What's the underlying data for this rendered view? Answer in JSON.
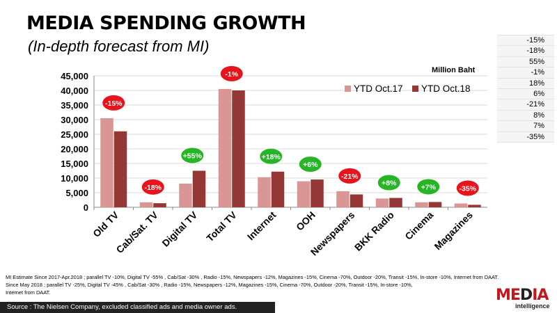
{
  "title": "MEDIA SPENDING GROWTH",
  "subtitle": "(In-depth forecast from MI)",
  "unit_label": "Million Baht",
  "side_table": [
    "-15%",
    "-18%",
    "55%",
    "-1%",
    "18%",
    "6%",
    "-21%",
    "8%",
    "7%",
    "-35%"
  ],
  "notes": [
    "MI Estimate Since 2017-Apr.2018 ; parallel TV -10%, Digital TV -55% , Cab/Sat -30% , Radio -15%, Newspapers -12%, Magazines -15%, Cinema -70%, Outdoor -20%, Transit -15%, In-store -10%, Internet from DAAT.",
    "Since May 2018 ; parallel TV -25%, Digital TV -45% , Cab/Sat -30% , Radio -15%, Newspapers -12%, Magazines -15%, Cinema -70%, Outdoor -20%, Transit -15%, In-store -10%,",
    "Internet from DAAT."
  ],
  "source": "Source : The Nielsen Company, excluded classified ads and media owner ads.",
  "logo": {
    "main_red": "ME",
    "main_dark": "D",
    "main_red2": "IA",
    "sub": "intelligence"
  },
  "colors": {
    "series1": "#d99694",
    "series2": "#953735",
    "negative_badge": "#e8141b",
    "positive_badge": "#27b427",
    "grid": "#d9d9d9"
  },
  "chart_data": {
    "type": "bar",
    "categories": [
      "Old TV",
      "Cab/Sat. TV",
      "Digital TV",
      "Total TV",
      "Internet",
      "OOH",
      "Newspapers",
      "BKK Radio",
      "Cinema",
      "Magazines"
    ],
    "series": [
      {
        "name": "YTD Oct.17",
        "values": [
          30500,
          1700,
          8100,
          40500,
          10300,
          8900,
          5500,
          3000,
          1700,
          1300
        ]
      },
      {
        "name": "YTD Oct.18",
        "values": [
          26000,
          1400,
          12500,
          40000,
          12200,
          9500,
          4400,
          3200,
          1800,
          850
        ]
      }
    ],
    "growth_labels": [
      "-15%",
      "-18%",
      "+55%",
      "-1%",
      "+18%",
      "+6%",
      "-21%",
      "+8%",
      "+7%",
      "-35%"
    ],
    "y_ticks": [
      "0",
      "5,000",
      "10,000",
      "15,000",
      "20,000",
      "25,000",
      "30,000",
      "35,000",
      "40,000",
      "45,000"
    ],
    "ylim": [
      0,
      45000
    ],
    "grid": true,
    "legend_position": "top-right"
  }
}
